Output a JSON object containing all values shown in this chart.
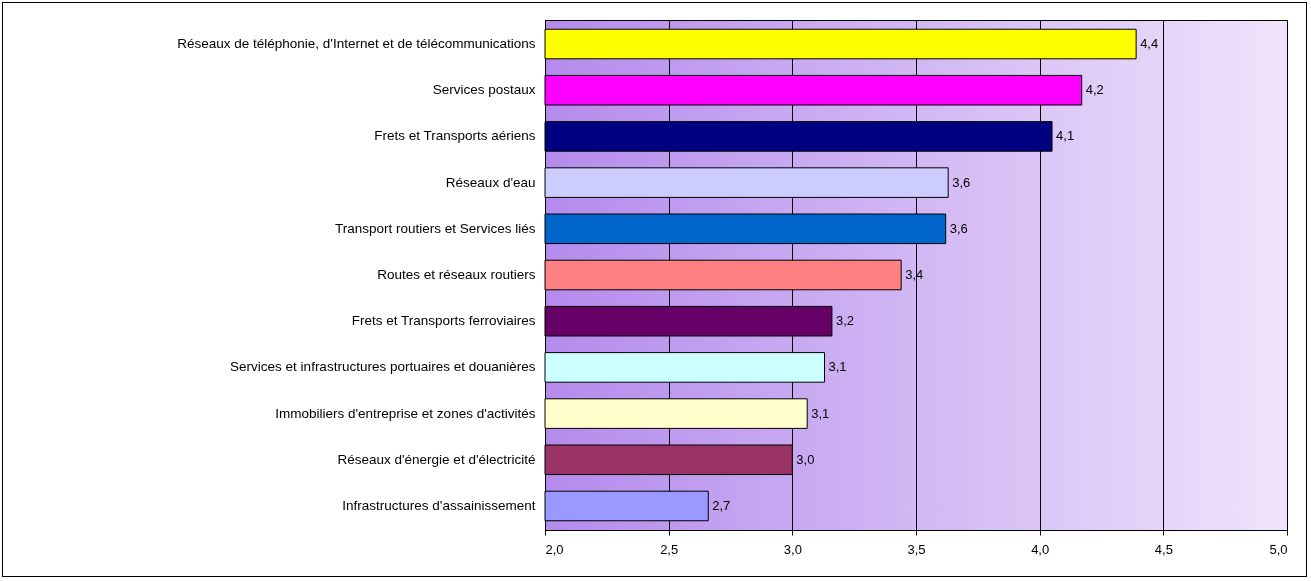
{
  "chart_data": {
    "type": "bar",
    "orientation": "horizontal",
    "categories": [
      "Réseaux de téléphonie, d'Internet et de télécommunications",
      "Services postaux",
      "Frets et Transports aériens",
      "Réseaux d'eau",
      "Transport routiers et Services liés",
      "Routes et réseaux routiers",
      "Frets et Transports ferroviaires",
      "Services et infrastructures portuaires et douanières",
      "Immobiliers d'entreprise et zones d'activités",
      "Réseaux d'énergie et d'électricité",
      "Infrastructures d'assainissement"
    ],
    "values": [
      4.39,
      4.17,
      4.05,
      3.63,
      3.62,
      3.44,
      3.16,
      3.13,
      3.06,
      3.0,
      2.66
    ],
    "colors": [
      "#ffff00",
      "#ff00ff",
      "#000080",
      "#ccccff",
      "#0066cc",
      "#ff8080",
      "#660066",
      "#ccffff",
      "#ffffcc",
      "#993366",
      "#9999ff"
    ],
    "value_labels": [
      "4,4",
      "4,2",
      "4,1",
      "3,6",
      "3,6",
      "3,4",
      "3,2",
      "3,1",
      "3,1",
      "3,0",
      "2,7"
    ],
    "xlim": [
      2,
      5
    ],
    "xticks": [
      {
        "value": 2,
        "label": "2,0"
      },
      {
        "value": 2.5,
        "label": "2,5"
      },
      {
        "value": 3,
        "label": "3,0"
      },
      {
        "value": 3.5,
        "label": "3,5"
      },
      {
        "value": 4,
        "label": "4,0"
      },
      {
        "value": 4.5,
        "label": "4,5"
      },
      {
        "value": 5,
        "label": "5,0"
      }
    ],
    "grid": "x"
  }
}
